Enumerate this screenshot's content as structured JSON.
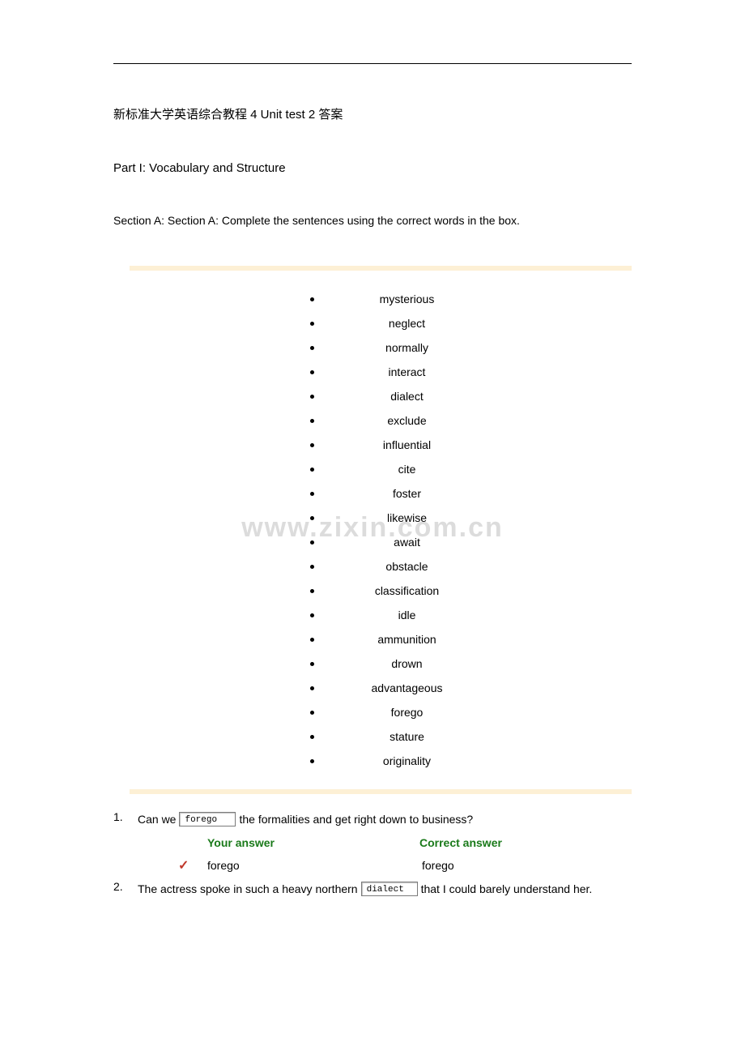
{
  "title": "新标准大学英语综合教程 4 Unit test 2 答案",
  "part_heading": "Part I: Vocabulary and Structure",
  "section_heading": "Section A: Section A: Complete the sentences using the correct words in the box.",
  "watermark": "www.zixin.com.cn",
  "words": [
    "mysterious",
    "neglect",
    "normally",
    "interact",
    "dialect",
    "exclude",
    "influential",
    "cite",
    "foster",
    "likewise",
    "await",
    "obstacle",
    "classification",
    "idle",
    "ammunition",
    "drown",
    "advantageous",
    "forego",
    "stature",
    "originality"
  ],
  "questions": [
    {
      "num": "1.",
      "pre": "Can we ",
      "box": "forego",
      "post": " the formalities and get right down to business?",
      "your_label": "Your answer",
      "correct_label": "Correct answer",
      "your_answer": "forego",
      "correct_answer": "forego",
      "show_answers": true
    },
    {
      "num": "2.",
      "pre": "The actress spoke in such a heavy northern ",
      "box": "dialect",
      "post": " that I could barely understand her.",
      "show_answers": false
    }
  ],
  "tick": "✓"
}
